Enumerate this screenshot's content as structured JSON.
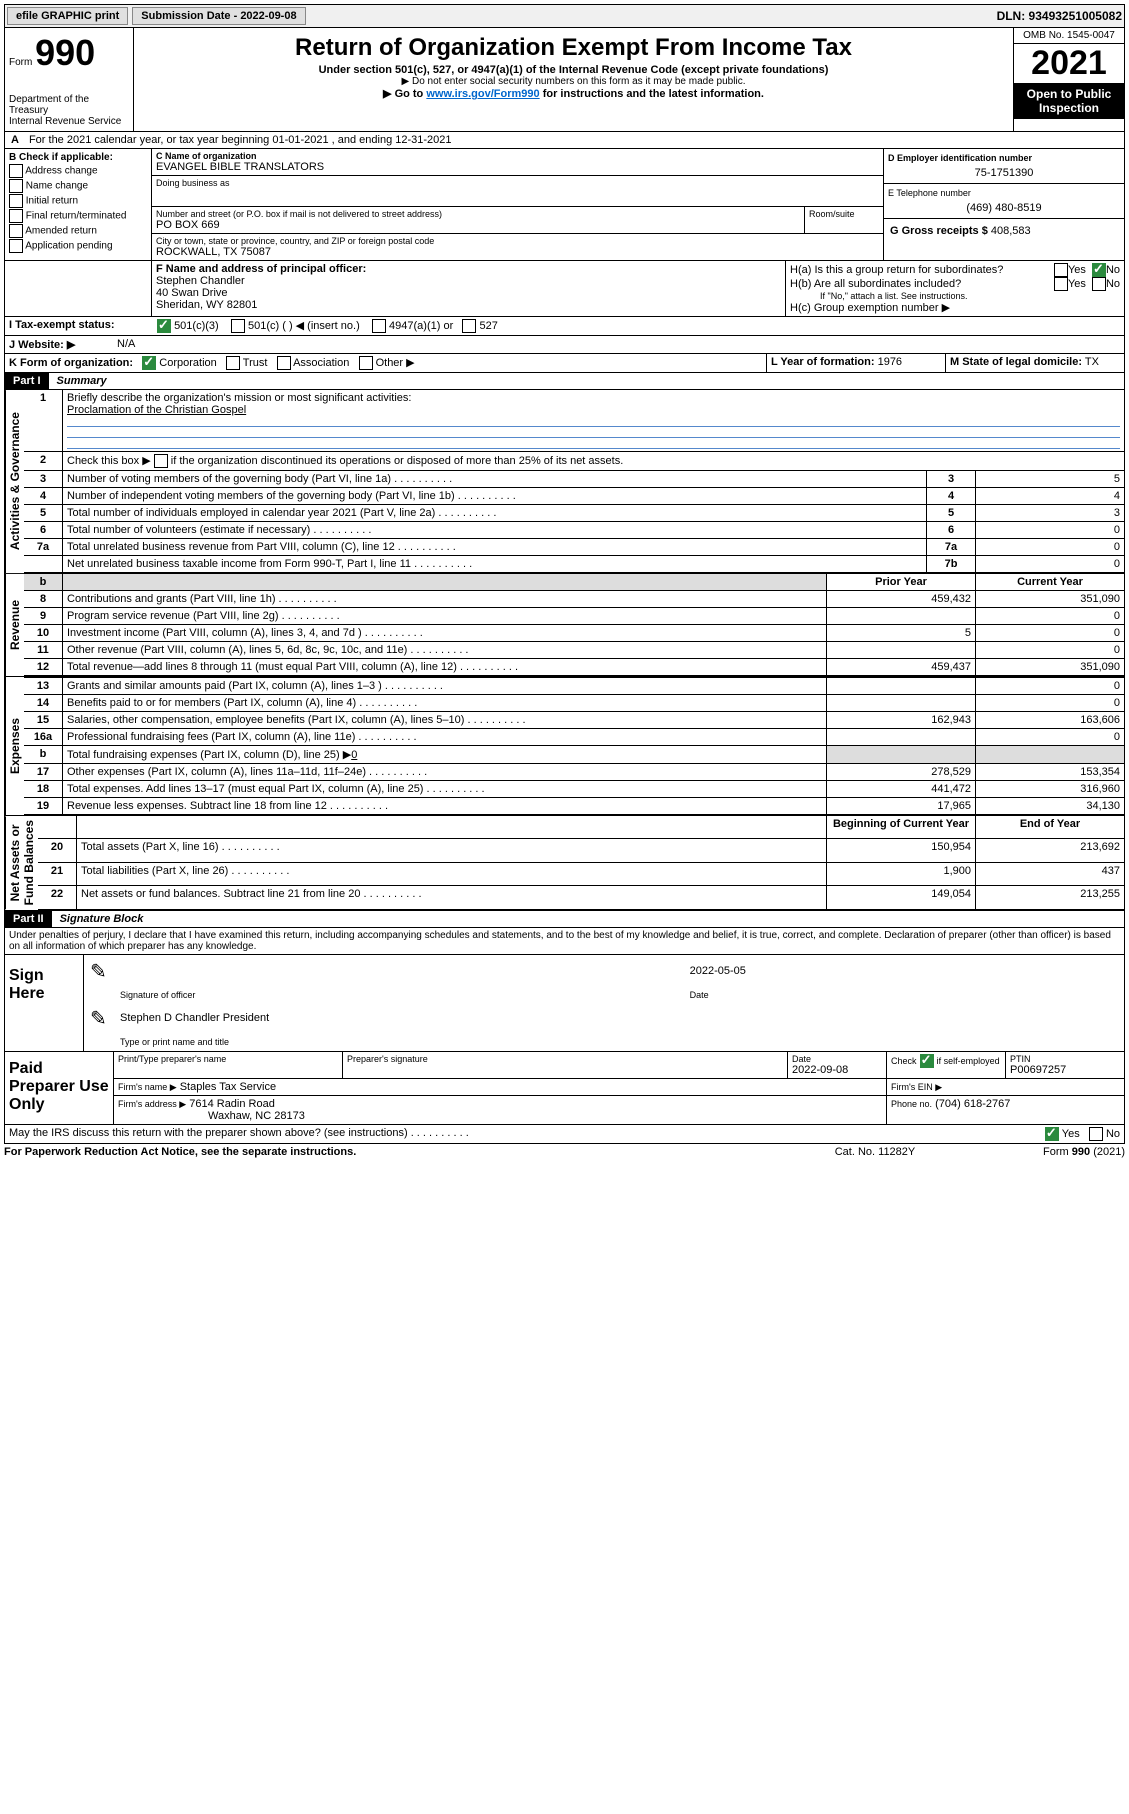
{
  "topbar": {
    "efile": "efile GRAPHIC print",
    "submission": "Submission Date - 2022-09-08",
    "dln": "DLN: 93493251005082"
  },
  "header": {
    "form_label": "Form",
    "form_number": "990",
    "title": "Return of Organization Exempt From Income Tax",
    "subtitle": "Under section 501(c), 527, or 4947(a)(1) of the Internal Revenue Code (except private foundations)",
    "note1": "▶ Do not enter social security numbers on this form as it may be made public.",
    "note2_pre": "▶ Go to ",
    "note2_link": "www.irs.gov/Form990",
    "note2_post": " for instructions and the latest information.",
    "dept": "Department of the Treasury",
    "irs": "Internal Revenue Service",
    "omb": "OMB No. 1545-0047",
    "year": "2021",
    "inspection": "Open to Public Inspection"
  },
  "line_a": "For the 2021 calendar year, or tax year beginning 01-01-2021   , and ending 12-31-2021",
  "section_b": {
    "label": "B Check if applicable:",
    "items": [
      "Address change",
      "Name change",
      "Initial return",
      "Final return/terminated",
      "Amended return",
      "Application pending"
    ]
  },
  "section_c": {
    "name_label": "C Name of organization",
    "name": "EVANGEL BIBLE TRANSLATORS",
    "dba_label": "Doing business as",
    "dba": "",
    "addr_label": "Number and street (or P.O. box if mail is not delivered to street address)",
    "room_label": "Room/suite",
    "addr": "PO BOX 669",
    "city_label": "City or town, state or province, country, and ZIP or foreign postal code",
    "city": "ROCKWALL, TX  75087"
  },
  "section_d": {
    "label": "D Employer identification number",
    "value": "75-1751390"
  },
  "section_e": {
    "label": "E Telephone number",
    "value": "(469) 480-8519"
  },
  "section_g": {
    "label": "G Gross receipts $",
    "value": "408,583"
  },
  "section_f": {
    "label": "F Name and address of principal officer:",
    "name": "Stephen Chandler",
    "addr1": "40 Swan Drive",
    "addr2": "Sheridan, WY  82801"
  },
  "section_h": {
    "ha_label": "H(a)  Is this a group return for subordinates?",
    "hb_label": "H(b)  Are all subordinates included?",
    "hb_note": "If \"No,\" attach a list. See instructions.",
    "hc_label": "H(c)  Group exemption number ▶",
    "yes": "Yes",
    "no": "No"
  },
  "section_i": {
    "label": "I   Tax-exempt status:",
    "opt1": "501(c)(3)",
    "opt2": "501(c) (  ) ◀ (insert no.)",
    "opt3": "4947(a)(1) or",
    "opt4": "527"
  },
  "section_j": {
    "label": "J   Website: ▶",
    "value": "N/A"
  },
  "section_k": {
    "label": "K Form of organization:",
    "opts": [
      "Corporation",
      "Trust",
      "Association",
      "Other ▶"
    ]
  },
  "section_l": {
    "label": "L Year of formation:",
    "value": "1976"
  },
  "section_m": {
    "label": "M State of legal domicile:",
    "value": "TX"
  },
  "part1": {
    "header": "Part I",
    "title": "Summary",
    "line1_label": "Briefly describe the organization's mission or most significant activities:",
    "line1_text": "Proclamation of the Christian Gospel",
    "line2": "Check this box ▶         if the organization discontinued its operations or disposed of more than 25% of its net assets.",
    "vert_labels": {
      "gov": "Activities & Governance",
      "rev": "Revenue",
      "exp": "Expenses",
      "net": "Net Assets or\nFund Balances"
    },
    "rows": [
      {
        "n": "3",
        "text": "Number of voting members of the governing body (Part VI, line 1a)",
        "box": "3",
        "val": "5"
      },
      {
        "n": "4",
        "text": "Number of independent voting members of the governing body (Part VI, line 1b)",
        "box": "4",
        "val": "4"
      },
      {
        "n": "5",
        "text": "Total number of individuals employed in calendar year 2021 (Part V, line 2a)",
        "box": "5",
        "val": "3"
      },
      {
        "n": "6",
        "text": "Total number of volunteers (estimate if necessary)",
        "box": "6",
        "val": "0"
      },
      {
        "n": "7a",
        "text": "Total unrelated business revenue from Part VIII, column (C), line 12",
        "box": "7a",
        "val": "0"
      },
      {
        "n": "",
        "text": "Net unrelated business taxable income from Form 990-T, Part I, line 11",
        "box": "7b",
        "val": "0"
      }
    ],
    "col_headers": {
      "prior": "Prior Year",
      "current": "Current Year",
      "begin": "Beginning of Current Year",
      "end": "End of Year"
    },
    "rev_rows": [
      {
        "n": "8",
        "text": "Contributions and grants (Part VIII, line 1h)",
        "py": "459,432",
        "cy": "351,090"
      },
      {
        "n": "9",
        "text": "Program service revenue (Part VIII, line 2g)",
        "py": "",
        "cy": "0"
      },
      {
        "n": "10",
        "text": "Investment income (Part VIII, column (A), lines 3, 4, and 7d )",
        "py": "5",
        "cy": "0"
      },
      {
        "n": "11",
        "text": "Other revenue (Part VIII, column (A), lines 5, 6d, 8c, 9c, 10c, and 11e)",
        "py": "",
        "cy": "0"
      },
      {
        "n": "12",
        "text": "Total revenue—add lines 8 through 11 (must equal Part VIII, column (A), line 12)",
        "py": "459,437",
        "cy": "351,090"
      }
    ],
    "exp_rows": [
      {
        "n": "13",
        "text": "Grants and similar amounts paid (Part IX, column (A), lines 1–3 )",
        "py": "",
        "cy": "0"
      },
      {
        "n": "14",
        "text": "Benefits paid to or for members (Part IX, column (A), line 4)",
        "py": "",
        "cy": "0"
      },
      {
        "n": "15",
        "text": "Salaries, other compensation, employee benefits (Part IX, column (A), lines 5–10)",
        "py": "162,943",
        "cy": "163,606"
      },
      {
        "n": "16a",
        "text": "Professional fundraising fees (Part IX, column (A), line 11e)",
        "py": "",
        "cy": "0"
      },
      {
        "n": "b",
        "text": "Total fundraising expenses (Part IX, column (D), line 25) ▶",
        "py": "GREY",
        "cy": "GREY",
        "inline": "0"
      },
      {
        "n": "17",
        "text": "Other expenses (Part IX, column (A), lines 11a–11d, 11f–24e)",
        "py": "278,529",
        "cy": "153,354"
      },
      {
        "n": "18",
        "text": "Total expenses. Add lines 13–17 (must equal Part IX, column (A), line 25)",
        "py": "441,472",
        "cy": "316,960"
      },
      {
        "n": "19",
        "text": "Revenue less expenses. Subtract line 18 from line 12",
        "py": "17,965",
        "cy": "34,130"
      }
    ],
    "net_rows": [
      {
        "n": "20",
        "text": "Total assets (Part X, line 16)",
        "py": "150,954",
        "cy": "213,692"
      },
      {
        "n": "21",
        "text": "Total liabilities (Part X, line 26)",
        "py": "1,900",
        "cy": "437"
      },
      {
        "n": "22",
        "text": "Net assets or fund balances. Subtract line 21 from line 20",
        "py": "149,054",
        "cy": "213,255"
      }
    ]
  },
  "part2": {
    "header": "Part II",
    "title": "Signature Block",
    "declaration": "Under penalties of perjury, I declare that I have examined this return, including accompanying schedules and statements, and to the best of my knowledge and belief, it is true, correct, and complete. Declaration of preparer (other than officer) is based on all information of which preparer has any knowledge.",
    "sign_here": "Sign Here",
    "sig_officer": "Signature of officer",
    "sig_date": "Date",
    "sig_date_val": "2022-05-05",
    "officer_name": "Stephen D Chandler  President",
    "name_title": "Type or print name and title",
    "paid": "Paid Preparer Use Only",
    "prep_name_label": "Print/Type preparer's name",
    "prep_sig_label": "Preparer's signature",
    "date_label": "Date",
    "date_val": "2022-09-08",
    "check_if": "Check",
    "self_emp": "if self-employed",
    "ptin_label": "PTIN",
    "ptin": "P00697257",
    "firm_name_label": "Firm's name    ▶",
    "firm_name": "Staples Tax Service",
    "firm_ein_label": "Firm's EIN ▶",
    "firm_addr_label": "Firm's address ▶",
    "firm_addr1": "7614 Radin Road",
    "firm_addr2": "Waxhaw, NC  28173",
    "phone_label": "Phone no.",
    "phone": "(704) 618-2767",
    "may_irs": "May the IRS discuss this return with the preparer shown above? (see instructions)",
    "yes": "Yes",
    "no": "No"
  },
  "footer": {
    "left": "For Paperwork Reduction Act Notice, see the separate instructions.",
    "center": "Cat. No. 11282Y",
    "right_pre": "Form ",
    "right_bold": "990",
    "right_post": " (2021)"
  }
}
